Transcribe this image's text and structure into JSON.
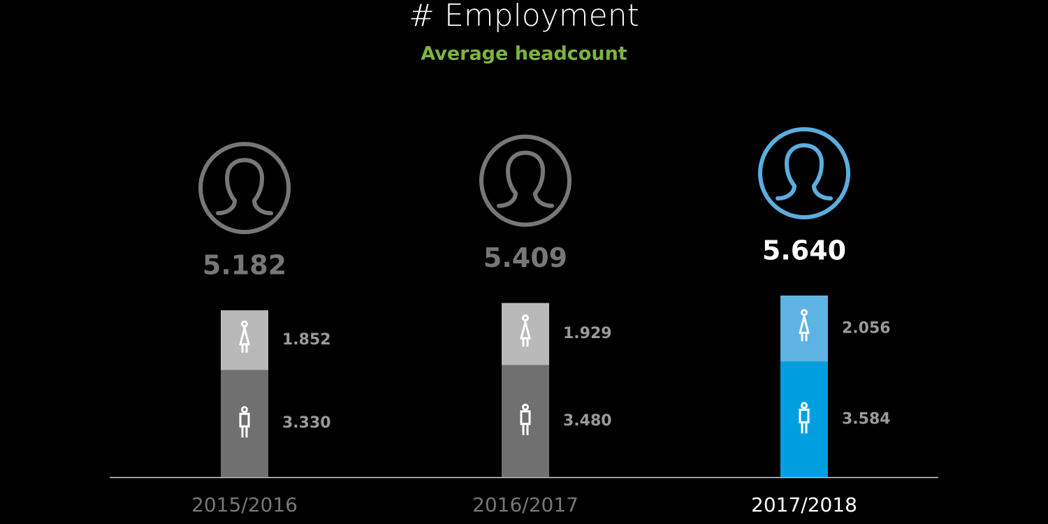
{
  "chart_data": {
    "type": "stacked-bar",
    "title": "# Employment",
    "subtitle": "Average headcount",
    "categories": [
      "2015/2016",
      "2016/2017",
      "2017/2018"
    ],
    "category_colors": [
      "#777777",
      "#777777",
      "#ffffff"
    ],
    "icon_colors": [
      "#777777",
      "#777777",
      "#5aaee0"
    ],
    "series": [
      {
        "values": [
          3330,
          3480,
          3584
        ],
        "value_labels": [
          "3.330",
          "3.480",
          "3.584"
        ],
        "colors": [
          "#707070",
          "#707070",
          "#00a0e0"
        ]
      },
      {
        "values": [
          1852,
          1929,
          2056
        ],
        "value_labels": [
          "1.852",
          "1.929",
          "2.056"
        ],
        "colors": [
          "#b9b9b9",
          "#b9b9b9",
          "#5db3e4"
        ]
      }
    ],
    "totals": {
      "values": [
        5182,
        5409,
        5640
      ],
      "value_labels": [
        "5.182",
        "5.409",
        "5.640"
      ]
    }
  }
}
